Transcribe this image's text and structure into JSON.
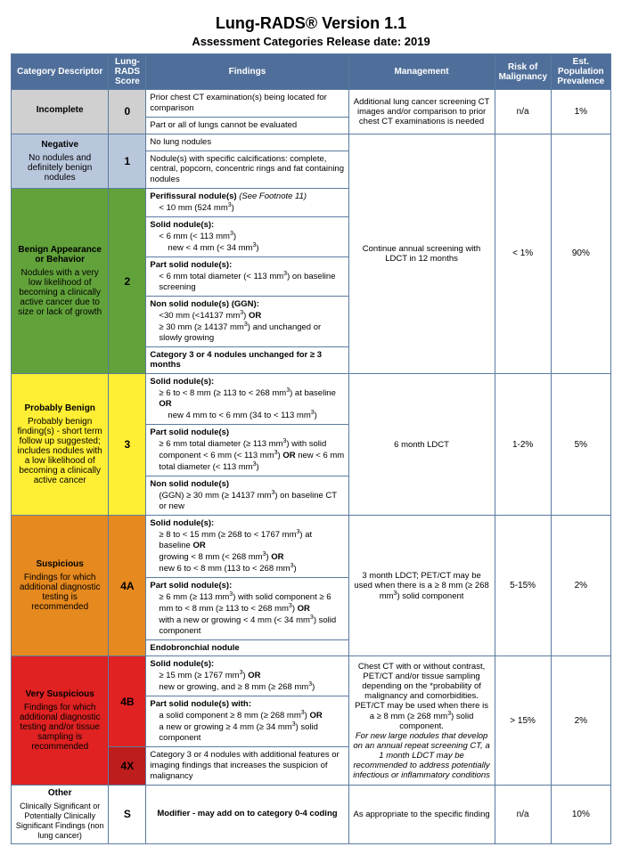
{
  "title": "Lung-RADS® Version 1.1",
  "subtitle": "Assessment Categories Release date: 2019",
  "columns": {
    "c1": "Category Descriptor",
    "c2": "Lung-RADS Score",
    "c3": "Findings",
    "c4": "Management",
    "c5": "Risk of Malignancy",
    "c6": "Est. Population Prevalence"
  },
  "colors": {
    "header_bg": "#4f6f9a",
    "incomplete": "#d0d0d0",
    "negative": "#b9c7dd",
    "benign": "#62a23a",
    "probably_benign": "#ffee33",
    "suspicious": "#e6891f",
    "very_suspicious": "#e02222",
    "other": "#ffffff"
  },
  "rows": {
    "incomplete": {
      "label": "Incomplete",
      "desc": "",
      "score": "0",
      "find1": "Prior chest CT examination(s) being located for comparison",
      "find2": "Part or all of lungs cannot be evaluated",
      "mgmt": "Additional lung cancer screening CT images and/or comparison to prior chest CT examinations is needed",
      "risk": "n/a",
      "prev": "1%"
    },
    "negative": {
      "label": "Negative",
      "desc": "No nodules and definitely benign nodules",
      "score": "1",
      "find1": "No lung nodules",
      "find2": "Nodule(s) with specific calcifications: complete, central, popcorn, concentric rings and fat containing nodules"
    },
    "benign": {
      "label": "Benign Appearance or Behavior",
      "desc": "Nodules with a very low likelihood of becoming a clinically active cancer due to size or lack of growth",
      "score": "2",
      "f_perifissural_h": "Perifissural nodule(s)",
      "f_perifissural_note": " (See Footnote 11)",
      "f_perifissural_l1": "< 10 mm (524 mm³)",
      "f_solid_h": "Solid nodule(s):",
      "f_solid_l1": "< 6 mm (< 113 mm³)",
      "f_solid_l2": "new < 4 mm (< 34 mm³)",
      "f_partsolid_h": "Part solid nodule(s):",
      "f_partsolid_l1": "< 6 mm total diameter (< 113 mm³) on baseline screening",
      "f_nonsolid_h": "Non solid nodule(s) (GGN):",
      "f_nonsolid_l1": "<30 mm (<14137 mm³) OR",
      "f_nonsolid_l2": "≥ 30 mm (≥ 14137 mm³) and unchanged or slowly growing",
      "f_cat34": "Category 3 or 4 nodules unchanged for ≥ 3 months",
      "mgmt": "Continue annual screening with LDCT in 12 months",
      "risk": "< 1%",
      "prev": "90%"
    },
    "probbenign": {
      "label": "Probably Benign",
      "desc": "Probably benign finding(s) - short term follow up suggested; includes nodules with a low likelihood of becoming a clinically active cancer",
      "score": "3",
      "f_solid_h": "Solid nodule(s):",
      "f_solid_l1": "≥ 6 to < 8 mm (≥ 113 to < 268 mm³) at baseline OR",
      "f_solid_l2": "new 4 mm to < 6 mm (34 to < 113 mm³)",
      "f_partsolid_h": "Part solid nodule(s)",
      "f_partsolid_l1": "≥ 6 mm total diameter (≥ 113 mm³) with solid component < 6 mm (< 113 mm³) OR new < 6 mm total diameter (< 113 mm³)",
      "f_nonsolid_h": "Non solid nodule(s)",
      "f_nonsolid_l1": "(GGN) ≥ 30 mm (≥ 14137 mm³) on baseline CT or new",
      "mgmt": "6 month LDCT",
      "risk": "1-2%",
      "prev": "5%"
    },
    "suspicious": {
      "label": "Suspicious",
      "desc": "Findings for which additional diagnostic testing is recommended",
      "score": "4A",
      "f_solid_h": "Solid nodule(s):",
      "f_solid_l1": "≥ 8 to < 15 mm (≥ 268 to < 1767 mm³)  at baseline OR",
      "f_solid_l2": "growing < 8 mm (< 268 mm³) OR",
      "f_solid_l3": "new 6 to < 8 mm (113 to < 268 mm³)",
      "f_partsolid_h": "Part solid nodule(s):",
      "f_partsolid_l1": "≥ 6 mm (≥ 113 mm³) with solid component ≥ 6 mm to < 8 mm (≥ 113 to < 268 mm³)  OR",
      "f_partsolid_l2": "with a new or growing < 4 mm (< 34 mm³) solid component",
      "f_endo": "Endobronchial nodule",
      "mgmt": "3 month LDCT; PET/CT may be used when there is a ≥ 8 mm (≥ 268 mm³) solid component",
      "risk": "5-15%",
      "prev": "2%"
    },
    "verysusp": {
      "label": "Very Suspicious",
      "desc": "Findings for which additional diagnostic testing and/or tissue sampling is recommended",
      "score4b": "4B",
      "score4x": "4X",
      "f_solid_h": "Solid nodule(s):",
      "f_solid_l1": "≥ 15 mm (≥ 1767 mm³) OR",
      "f_solid_l2": "new or growing, and ≥ 8 mm (≥ 268 mm³)",
      "f_partsolid_h": "Part solid nodule(s) with:",
      "f_partsolid_l1": "a solid component ≥ 8 mm (≥ 268 mm³) OR",
      "f_partsolid_l2": "a new or growing ≥ 4 mm (≥ 34 mm³) solid component",
      "f_4x": "Category 3 or 4 nodules with additional features or imaging findings that increases the suspicion of malignancy",
      "mgmt": "Chest CT with or without contrast, PET/CT and/or tissue sampling depending on the *probability of malignancy and comorbidities. PET/CT may be used when there is a ≥ 8 mm (≥ 268 mm³) solid component.",
      "mgmt_italic": "For new large nodules that develop on an annual repeat screening CT, a 1 month LDCT may be recommended to address potentially infectious or inflammatory conditions",
      "risk": "> 15%",
      "prev": "2%"
    },
    "other": {
      "label": "Other",
      "desc": "Clinically Significant or Potentially Clinically Significant Findings (non lung cancer)",
      "score": "S",
      "find": "Modifier - may add on to category 0-4 coding",
      "mgmt": "As appropriate to the specific finding",
      "risk": "n/a",
      "prev": "10%"
    }
  }
}
